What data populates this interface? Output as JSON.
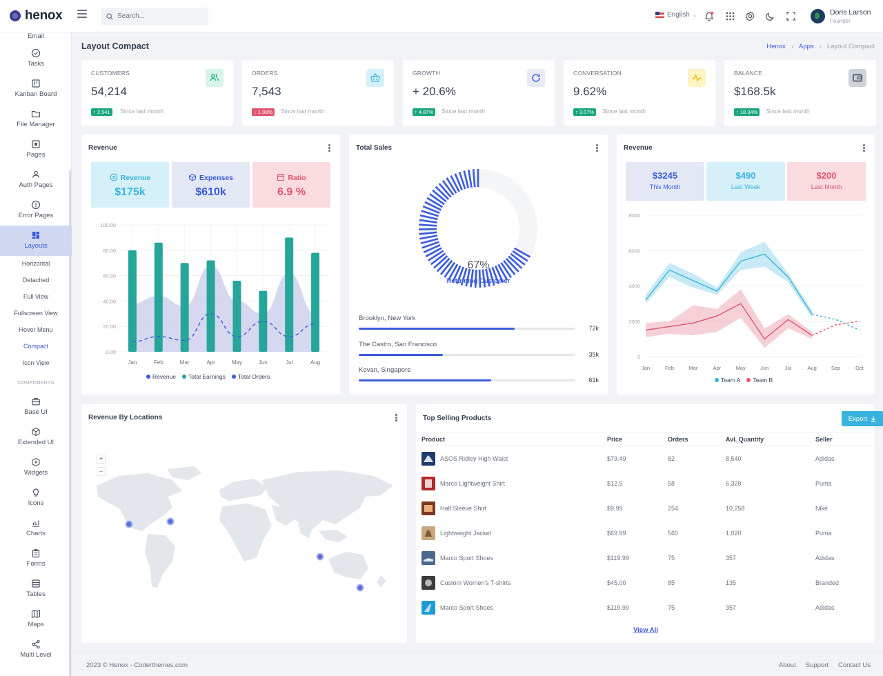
{
  "app": {
    "name": "henox",
    "search_placeholder": "Search...",
    "language": "English",
    "user": {
      "name": "Doris Larson",
      "role": "Founder"
    }
  },
  "sidebar": {
    "items": [
      {
        "label": "Email",
        "icon": "mail-icon"
      },
      {
        "label": "Tasks",
        "icon": "check-circle-icon"
      },
      {
        "label": "Kanban Board",
        "icon": "kanban-icon"
      },
      {
        "label": "File Manager",
        "icon": "folder-icon"
      },
      {
        "label": "Pages",
        "icon": "page-icon"
      },
      {
        "label": "Auth Pages",
        "icon": "users-icon"
      },
      {
        "label": "Error Pages",
        "icon": "alert-circle-icon"
      },
      {
        "label": "Layouts",
        "icon": "layout-icon"
      }
    ],
    "sub_items": [
      "Horizontal",
      "Detached",
      "Full View",
      "Fullscreen View",
      "Hover Menu",
      "Compact",
      "Icon View"
    ],
    "section_title": "COMPONENTS",
    "components": [
      {
        "label": "Base UI",
        "icon": "briefcase-icon"
      },
      {
        "label": "Extended UI",
        "icon": "cube-icon"
      },
      {
        "label": "Widgets",
        "icon": "widget-icon"
      },
      {
        "label": "Icons",
        "icon": "lightbulb-icon"
      },
      {
        "label": "Charts",
        "icon": "chart-icon"
      },
      {
        "label": "Forms",
        "icon": "clipboard-icon"
      },
      {
        "label": "Tables",
        "icon": "table-icon"
      },
      {
        "label": "Maps",
        "icon": "map-icon"
      },
      {
        "label": "Multi Level",
        "icon": "share-icon"
      }
    ]
  },
  "page": {
    "title": "Layout Compact",
    "breadcrumb": [
      "Henox",
      "Apps",
      "Layout Compact"
    ]
  },
  "stats": [
    {
      "label": "CUSTOMERS",
      "value": "54,214",
      "badge": "↑ 2,541",
      "since": "Since last month",
      "badge_color": "#1aa580",
      "icon_bg": "#d6f5e8",
      "icon_color": "#1aa580",
      "icon": "users-icon"
    },
    {
      "label": "ORDERS",
      "value": "7,543",
      "badge": "↓ 1.08%",
      "since": "Since last month",
      "badge_color": "#e0556f",
      "icon_bg": "#d6f0fa",
      "icon_color": "#38b3dd",
      "icon": "basket-icon"
    },
    {
      "label": "GROWTH",
      "value": "+ 20.6%",
      "badge": "↑ 4.87%",
      "since": "Since last month",
      "badge_color": "#1aa580",
      "icon_bg": "#e9ecf6",
      "icon_color": "#3b5bdb",
      "icon": "refresh-icon"
    },
    {
      "label": "CONVERSATION",
      "value": "9.62%",
      "badge": "↑ 3.07%",
      "since": "Since last month",
      "badge_color": "#1aa580",
      "icon_bg": "#fff3c4",
      "icon_color": "#f2b705",
      "icon": "activity-icon"
    },
    {
      "label": "BALANCE",
      "value": "$168.5k",
      "badge": "↑ 18.34%",
      "since": "Since last month",
      "badge_color": "#1aa580",
      "icon_bg": "#cdd1d8",
      "icon_color": "#374151",
      "icon": "wallet-icon"
    }
  ],
  "revenue_card": {
    "title": "Revenue",
    "minis": [
      {
        "label": "Revenue",
        "value": "$175k",
        "bg": "#d6f0fa",
        "color": "#38b3dd",
        "icon": "receipt-icon"
      },
      {
        "label": "Expenses",
        "value": "$610k",
        "bg": "#e4e8f5",
        "color": "#3b5bdb",
        "icon": "box-icon"
      },
      {
        "label": "Ratio",
        "value": "6.9 %",
        "bg": "#fadbe0",
        "color": "#e0556f",
        "icon": "calendar-icon"
      }
    ]
  },
  "total_sales": {
    "title": "Total Sales",
    "percent": "67%",
    "label": "Returning Customer",
    "locations": [
      {
        "name": "Brooklyn, New York",
        "value": "72k",
        "pct": 72
      },
      {
        "name": "The Castro, San Francisco",
        "value": "39k",
        "pct": 39
      },
      {
        "name": "Kovan, Singapore",
        "value": "61k",
        "pct": 61
      }
    ]
  },
  "revenue2_card": {
    "title": "Revenue",
    "minis": [
      {
        "label": "This Month",
        "value": "$3245",
        "bg": "#e4e8f5",
        "color": "#3b5bdb"
      },
      {
        "label": "Last Week",
        "value": "$490",
        "bg": "#d6f0fa",
        "color": "#38b3dd"
      },
      {
        "label": "Last Month",
        "value": "$200",
        "bg": "#fadbe0",
        "color": "#e0556f"
      }
    ]
  },
  "map_card": {
    "title": "Revenue By Locations",
    "zoom_in": "+",
    "zoom_out": "−"
  },
  "products": {
    "title": "Top Selling Products",
    "export_label": "Export",
    "view_all": "View All",
    "columns": [
      "Product",
      "Price",
      "Orders",
      "Avl. Quantity",
      "Seller"
    ],
    "rows": [
      {
        "name": "ASOS Ridley High Waist",
        "price": "$79.49",
        "orders": "82",
        "qty": "8,540",
        "seller": "Adidas",
        "thumb": "#1f3a6e"
      },
      {
        "name": "Marco Lightweight Shirt",
        "price": "$12.5",
        "orders": "58",
        "qty": "6,320",
        "seller": "Puma",
        "thumb": "#b22a2a"
      },
      {
        "name": "Half Sleeve Shirt",
        "price": "$9.99",
        "orders": "254",
        "qty": "10,258",
        "seller": "Nike",
        "thumb": "#7a3a20"
      },
      {
        "name": "Lightweight Jacket",
        "price": "$69.99",
        "orders": "560",
        "qty": "1,020",
        "seller": "Puma",
        "thumb": "#c9a77c"
      },
      {
        "name": "Marco Sport Shoes",
        "price": "$119.99",
        "orders": "75",
        "qty": "357",
        "seller": "Adidas",
        "thumb": "#4a6a8a"
      },
      {
        "name": "Custom Women's T-shirts",
        "price": "$45.00",
        "orders": "85",
        "qty": "135",
        "seller": "Branded",
        "thumb": "#3c3c3c"
      },
      {
        "name": "Marco Sport Shoes",
        "price": "$119.99",
        "orders": "75",
        "qty": "357",
        "seller": "Adidas",
        "thumb": "#1e9bd7"
      }
    ]
  },
  "footer": {
    "copyright": "2023 © Henox - Coderthemes.com",
    "links": [
      "About",
      "Support",
      "Contact Us"
    ]
  },
  "chart_data": [
    {
      "type": "bar",
      "title": "Revenue",
      "categories": [
        "Jan",
        "Feb",
        "Mar",
        "Apr",
        "May",
        "Jun",
        "Jul",
        "Aug"
      ],
      "ylim": [
        0,
        100
      ],
      "yticks": [
        "0.00",
        "20.00",
        "40.00",
        "60.00",
        "80.00",
        "100.00"
      ],
      "series": [
        {
          "name": "Revenue",
          "kind": "area",
          "color": "#c7cbe8",
          "values": [
            38,
            44,
            36,
            68,
            40,
            30,
            62,
            30
          ]
        },
        {
          "name": "Total Earnings",
          "kind": "bar",
          "color": "#26a69a",
          "values": [
            80,
            86,
            70,
            72,
            56,
            48,
            90,
            78
          ]
        },
        {
          "name": "Total Orders",
          "kind": "dashed-line",
          "color": "#3b5bdb",
          "values": [
            8,
            12,
            9,
            30,
            12,
            24,
            12,
            22
          ]
        }
      ],
      "legend_position": "bottom"
    },
    {
      "type": "radial",
      "title": "Total Sales",
      "value": 67,
      "label": "Returning Customer",
      "color": "#3b5bdb"
    },
    {
      "type": "line",
      "title": "Revenue",
      "categories": [
        "Jan",
        "Feb",
        "Mar",
        "Apr",
        "May",
        "Jun",
        "Jul",
        "Aug",
        "Sep",
        "Oct"
      ],
      "ylim": [
        0,
        8000
      ],
      "yticks": [
        "0",
        "2000",
        "4000",
        "6000",
        "8000"
      ],
      "series": [
        {
          "name": "Team A",
          "color": "#38b3dd",
          "values": [
            3200,
            4900,
            4300,
            3700,
            5400,
            5800,
            4500,
            2400,
            2100,
            1500
          ],
          "band_low": [
            3000,
            4500,
            3900,
            3500,
            4900,
            5100,
            4200,
            2200,
            null,
            null
          ],
          "band_high": [
            3500,
            5300,
            4700,
            3900,
            5900,
            6500,
            4700,
            2600,
            null,
            null
          ],
          "dashed_from": 7
        },
        {
          "name": "Team B",
          "color": "#e0556f",
          "values": [
            1500,
            1700,
            1900,
            2300,
            3000,
            1000,
            2100,
            1200,
            1800,
            2000
          ],
          "band_low": [
            1100,
            1300,
            1200,
            1400,
            2200,
            500,
            1600,
            1000,
            null,
            null
          ],
          "band_high": [
            1900,
            2000,
            2900,
            2700,
            3800,
            1600,
            2400,
            1400,
            null,
            null
          ],
          "dashed_from": 7
        }
      ],
      "legend_position": "bottom"
    }
  ]
}
